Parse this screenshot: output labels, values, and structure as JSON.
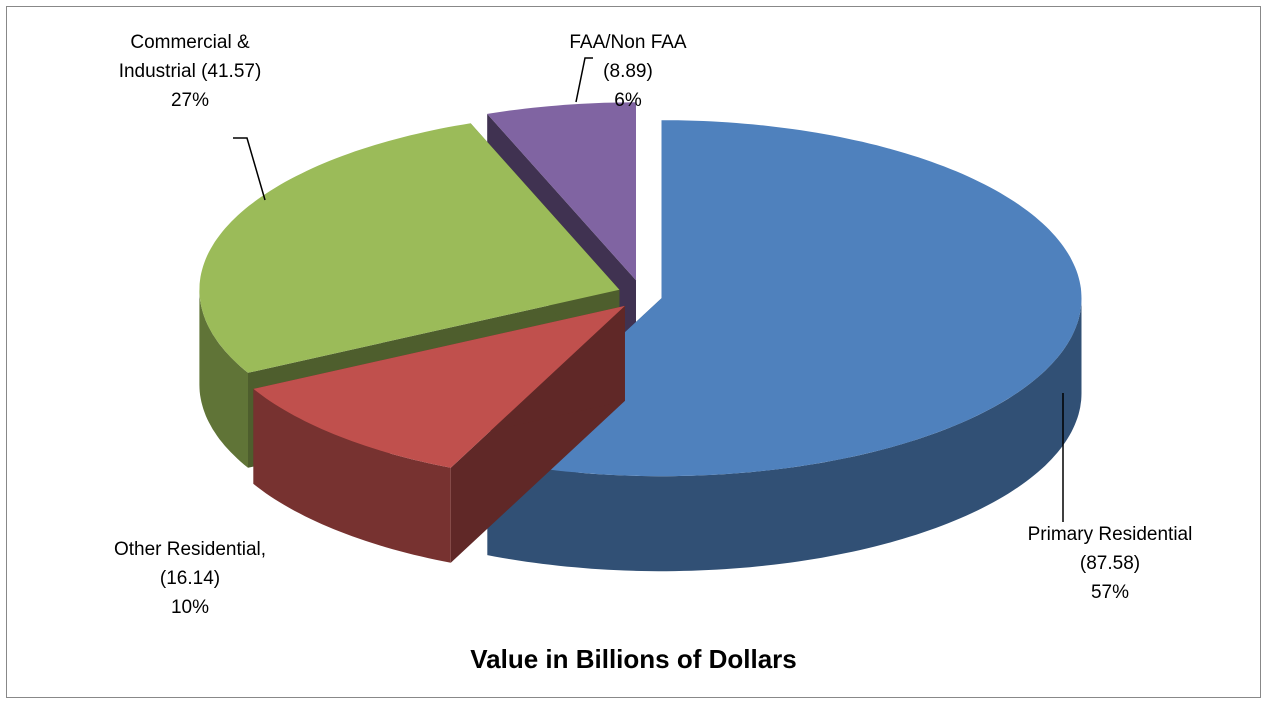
{
  "chart_data": {
    "type": "pie3d",
    "title": "Value in Billions of Dollars",
    "categories": [
      "Primary Residential",
      "Other Residential,",
      "Commercial & Industrial",
      "FAA/Non FAA"
    ],
    "values": [
      87.58,
      16.14,
      41.57,
      8.89
    ],
    "value_labels": [
      "(87.58)",
      "(16.14)",
      "(41.57)",
      "(8.89)"
    ],
    "percents": [
      57,
      10,
      27,
      6
    ],
    "percent_labels": [
      "57%",
      "10%",
      "27%",
      "6%"
    ],
    "colors": [
      "#4f81bd",
      "#c0504d",
      "#9bbb59",
      "#8064a2"
    ]
  }
}
